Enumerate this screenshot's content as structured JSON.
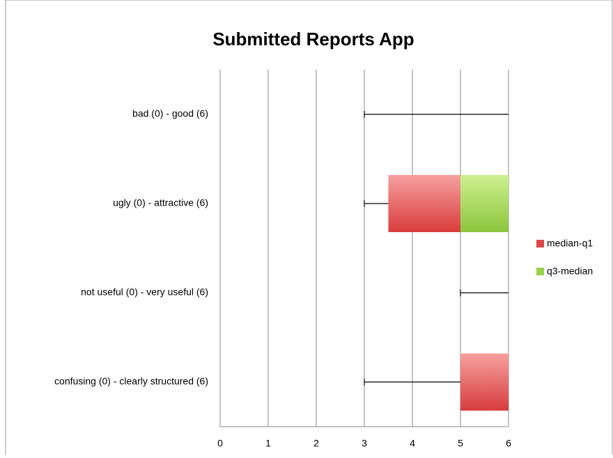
{
  "chart_data": {
    "type": "bar",
    "orientation": "horizontal",
    "stacked": true,
    "title": "Submitted Reports App",
    "categories": [
      "bad (0) - good (6)",
      "ugly (0) - attractive (6)",
      "not useful (0) - very useful (6)",
      "confusing (0) - clearly structured (6)"
    ],
    "base_values": [
      6,
      3.5,
      6,
      5
    ],
    "error_minus": [
      3,
      0.5,
      1,
      2
    ],
    "series": [
      {
        "name": "median-q1",
        "color": "#e04848",
        "values": [
          0,
          1.5,
          0,
          1
        ]
      },
      {
        "name": "q3-median",
        "color": "#99d04c",
        "values": [
          0,
          1,
          0,
          0
        ]
      }
    ],
    "xlim": [
      0,
      6
    ],
    "xticks": [
      0,
      1,
      2,
      3,
      4,
      5,
      6
    ],
    "grid": true,
    "legend": "right"
  }
}
